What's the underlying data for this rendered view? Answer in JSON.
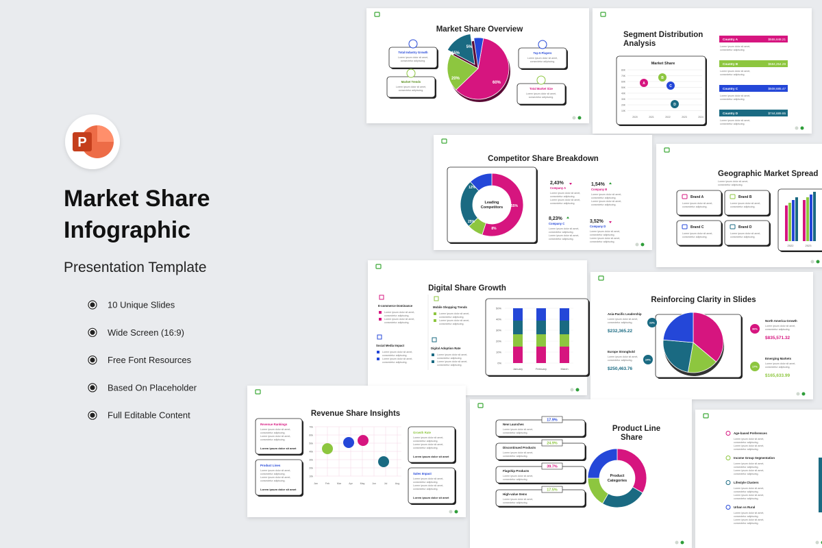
{
  "header": {
    "logo": "P",
    "title_line1": "Market Share",
    "title_line2": "Infographic",
    "subtitle": "Presentation Template"
  },
  "features": [
    "10 Unique Slides",
    "Wide Screen (16:9)",
    "Free Font Resources",
    "Based On Placeholder",
    "Full Editable Content"
  ],
  "lorem": [
    "Lorem ipsum dolor sit amet,",
    "consectetur adipiscing."
  ],
  "slides": [
    {
      "title": "Market Share Overview",
      "labels": [
        "Total Industry Growth",
        "Market Trends",
        "Top 5 Players",
        "Total Market Size"
      ],
      "pie_labels": [
        "60%",
        "20%",
        "15%",
        "5%"
      ]
    },
    {
      "title_lines": [
        "Segment Distribution",
        "Analysis"
      ],
      "chart_title": "Market Share",
      "points": [
        "A",
        "B",
        "C",
        "D"
      ],
      "y_axis": [
        "80K",
        "70K",
        "60K",
        "50K",
        "40K",
        "30K",
        "20K",
        "10K"
      ],
      "years": [
        "2020",
        "2021",
        "2022",
        "2023",
        "2024"
      ],
      "countries": [
        {
          "name": "Country A",
          "value": "$555,648.21"
        },
        {
          "name": "Country B",
          "value": "$584,254.29"
        },
        {
          "name": "Country C",
          "value": "$508,685.47"
        },
        {
          "name": "Country D",
          "value": "$744,689.65"
        }
      ]
    },
    {
      "title": "Competitor Share Breakdown",
      "center_lines": [
        "Leading",
        "Competitors"
      ],
      "donut_labels": [
        "55%",
        "8%",
        "25%",
        "12%"
      ],
      "companies": [
        {
          "value": "2,43%",
          "name": "Company A"
        },
        {
          "value": "1,54%",
          "name": "Company B"
        },
        {
          "value": "8,23%",
          "name": "Company C"
        },
        {
          "value": "3,52%",
          "name": "Company D"
        }
      ]
    },
    {
      "title": "Geographic Market Spread",
      "brands": [
        "Brand A",
        "Brand B",
        "Brand C",
        "Brand D"
      ],
      "years": [
        "2022",
        "2023"
      ]
    },
    {
      "title": "Digital Share Growth",
      "items": [
        "E-commerce Dominance",
        "Mobile Shopping Trends",
        "Social Media Impact",
        "Digital Adoption Rate"
      ],
      "y_axis": [
        "50%",
        "40%",
        "30%",
        "20%",
        "10%",
        "0%"
      ],
      "months": [
        "January",
        "February",
        "March"
      ]
    },
    {
      "title": "Reinforcing Clarity in Slides",
      "regions": [
        {
          "name": "Asia-Pacific Leadership",
          "pct": "23%",
          "value": "$232,365.22"
        },
        {
          "name": "Europe Stronghold",
          "pct": "24%",
          "value": "$250,463.76"
        },
        {
          "name": "North America Growth",
          "pct": "36%",
          "value": "$835,571.32"
        },
        {
          "name": "Emerging Markets",
          "pct": "17%",
          "value": "$165,633.99"
        }
      ]
    },
    {
      "title": "Revenue Share Insights",
      "boxes": [
        "Revenue Rankings",
        "Product Lines",
        "Growth Rate",
        "Sales Impact"
      ],
      "strong": "Lorem ipsum dolor sit amet",
      "y_axis": [
        "70k",
        "60k",
        "50k",
        "40k",
        "30k",
        "20k",
        "10k"
      ],
      "months": [
        "Jan",
        "Feb",
        "Mar",
        "Apr",
        "May",
        "Jun",
        "Jul",
        "Aug"
      ]
    },
    {
      "title_lines": [
        "Product Line",
        "Share"
      ],
      "center_lines": [
        "Product",
        "Categories"
      ],
      "items": [
        {
          "name": "New Launches",
          "value": "17.9%"
        },
        {
          "name": "Discontinued Products",
          "value": "24.9%"
        },
        {
          "name": "Flagship Products",
          "value": "39.7%"
        },
        {
          "name": "High-value Items",
          "value": "17.5%"
        }
      ]
    },
    {
      "items": [
        "Age-based Preferences",
        "Income Group Segmentation",
        "Lifestyle Clusters",
        "Urban vs Rural"
      ]
    }
  ]
}
